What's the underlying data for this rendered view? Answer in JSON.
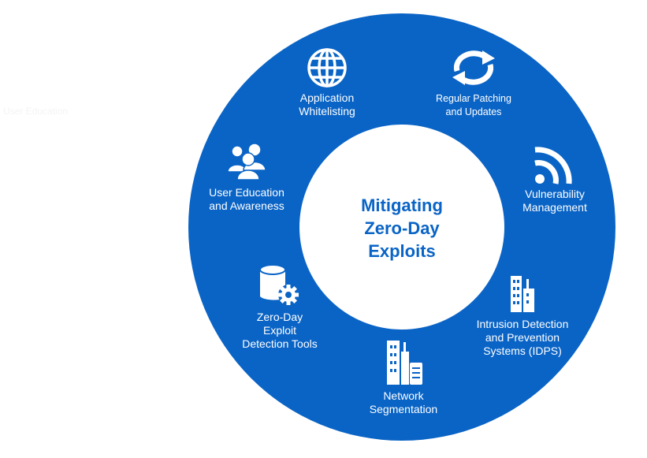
{
  "title": [
    "Mitigating",
    "Zero-Day",
    "Exploits"
  ],
  "colors": {
    "ring": "#0a64c6",
    "center_text": "#0a64c6",
    "label": "#ffffff"
  },
  "ghost_text": "User Education",
  "segments": [
    {
      "lines": [
        "Application",
        "Whitelisting"
      ],
      "icon": "globe-icon"
    },
    {
      "lines": [
        "Regular Patching",
        "and Updates"
      ],
      "icon": "refresh-icon"
    },
    {
      "lines": [
        "Vulnerability",
        "Management"
      ],
      "icon": "signal-icon"
    },
    {
      "lines": [
        "Intrusion Detection",
        "and Prevention",
        "Systems (IDPS)"
      ],
      "icon": "building-icon"
    },
    {
      "lines": [
        "Network",
        "Segmentation"
      ],
      "icon": "building-server-icon"
    },
    {
      "lines": [
        "Zero-Day",
        "Exploit",
        "Detection Tools"
      ],
      "icon": "database-gear-icon"
    },
    {
      "lines": [
        "User Education",
        "and Awareness"
      ],
      "icon": "users-icon"
    }
  ]
}
